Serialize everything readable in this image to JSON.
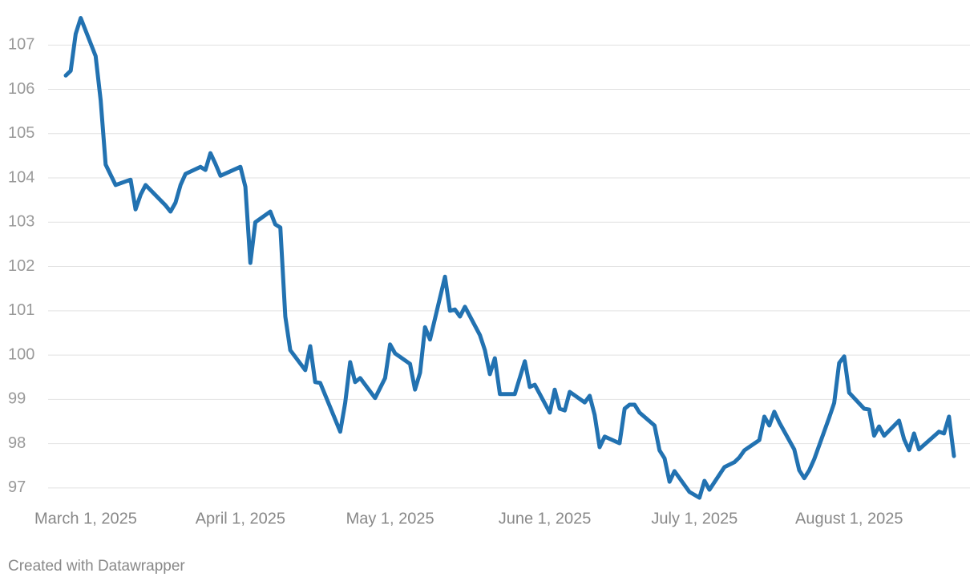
{
  "chart_data": {
    "type": "line",
    "x": [
      "2025-02-25",
      "2025-02-26",
      "2025-02-27",
      "2025-02-28",
      "2025-03-03",
      "2025-03-04",
      "2025-03-05",
      "2025-03-07",
      "2025-03-10",
      "2025-03-11",
      "2025-03-12",
      "2025-03-13",
      "2025-03-17",
      "2025-03-18",
      "2025-03-19",
      "2025-03-20",
      "2025-03-21",
      "2025-03-24",
      "2025-03-25",
      "2025-03-26",
      "2025-03-27",
      "2025-03-28",
      "2025-04-01",
      "2025-04-02",
      "2025-04-03",
      "2025-04-04",
      "2025-04-07",
      "2025-04-08",
      "2025-04-09",
      "2025-04-10",
      "2025-04-11",
      "2025-04-14",
      "2025-04-15",
      "2025-04-16",
      "2025-04-17",
      "2025-04-21",
      "2025-04-22",
      "2025-04-23",
      "2025-04-24",
      "2025-04-25",
      "2025-04-28",
      "2025-04-30",
      "2025-05-01",
      "2025-05-02",
      "2025-05-05",
      "2025-05-06",
      "2025-05-07",
      "2025-05-08",
      "2025-05-09",
      "2025-05-12",
      "2025-05-13",
      "2025-05-14",
      "2025-05-15",
      "2025-05-16",
      "2025-05-19",
      "2025-05-20",
      "2025-05-21",
      "2025-05-22",
      "2025-05-23",
      "2025-05-26",
      "2025-05-28",
      "2025-05-29",
      "2025-05-30",
      "2025-06-02",
      "2025-06-03",
      "2025-06-04",
      "2025-06-05",
      "2025-06-06",
      "2025-06-09",
      "2025-06-10",
      "2025-06-11",
      "2025-06-12",
      "2025-06-13",
      "2025-06-16",
      "2025-06-17",
      "2025-06-18",
      "2025-06-19",
      "2025-06-20",
      "2025-06-23",
      "2025-06-24",
      "2025-06-25",
      "2025-06-26",
      "2025-06-27",
      "2025-06-30",
      "2025-07-02",
      "2025-07-03",
      "2025-07-04",
      "2025-07-07",
      "2025-07-09",
      "2025-07-10",
      "2025-07-11",
      "2025-07-14",
      "2025-07-15",
      "2025-07-16",
      "2025-07-17",
      "2025-07-18",
      "2025-07-21",
      "2025-07-22",
      "2025-07-23",
      "2025-07-24",
      "2025-07-25",
      "2025-07-28",
      "2025-07-29",
      "2025-07-30",
      "2025-07-31",
      "2025-08-01",
      "2025-08-04",
      "2025-08-05",
      "2025-08-06",
      "2025-08-07",
      "2025-08-08",
      "2025-08-11",
      "2025-08-12",
      "2025-08-13",
      "2025-08-14",
      "2025-08-15",
      "2025-08-19",
      "2025-08-20",
      "2025-08-21",
      "2025-08-22"
    ],
    "series": [
      {
        "color": "#2272b1",
        "values": [
          106.31,
          106.42,
          107.25,
          107.61,
          106.75,
          105.75,
          104.3,
          103.84,
          103.96,
          103.29,
          103.62,
          103.84,
          103.38,
          103.24,
          103.44,
          103.84,
          104.09,
          104.25,
          104.18,
          104.56,
          104.32,
          104.05,
          104.25,
          103.8,
          102.08,
          103.0,
          103.24,
          102.95,
          102.88,
          100.87,
          100.11,
          99.66,
          100.2,
          99.39,
          99.37,
          98.27,
          98.92,
          99.84,
          99.39,
          99.48,
          99.03,
          99.48,
          100.24,
          100.04,
          99.8,
          99.22,
          99.6,
          100.63,
          100.35,
          101.77,
          101.0,
          101.03,
          100.87,
          101.09,
          100.45,
          100.11,
          99.57,
          99.93,
          99.12,
          99.12,
          99.86,
          99.28,
          99.33,
          98.7,
          99.22,
          98.79,
          98.75,
          99.17,
          98.93,
          99.08,
          98.65,
          97.92,
          98.16,
          98.01,
          98.79,
          98.88,
          98.88,
          98.7,
          98.41,
          97.85,
          97.67,
          97.14,
          97.38,
          96.91,
          96.78,
          97.16,
          96.96,
          97.47,
          97.58,
          97.69,
          97.85,
          98.08,
          98.61,
          98.41,
          98.72,
          98.48,
          97.87,
          97.4,
          97.22,
          97.4,
          97.65,
          98.59,
          98.92,
          99.82,
          99.97,
          99.15,
          98.79,
          98.77,
          98.18,
          98.39,
          98.18,
          98.52,
          98.1,
          97.85,
          98.23,
          97.87,
          98.27,
          98.23,
          98.61,
          97.72
        ]
      }
    ],
    "xlim": [
      "2025-02-25",
      "2025-08-22"
    ],
    "xticks": [
      {
        "value": "2025-03-01",
        "label": "March 1, 2025"
      },
      {
        "value": "2025-04-01",
        "label": "April 1, 2025"
      },
      {
        "value": "2025-05-01",
        "label": "May 1, 2025"
      },
      {
        "value": "2025-06-01",
        "label": "June 1, 2025"
      },
      {
        "value": "2025-07-01",
        "label": "July 1, 2025"
      },
      {
        "value": "2025-08-01",
        "label": "August 1, 2025"
      }
    ],
    "ylim": [
      96.6,
      107.8
    ],
    "yticks": [
      97,
      98,
      99,
      100,
      101,
      102,
      103,
      104,
      105,
      106,
      107
    ],
    "grid": true,
    "footer": "Created with Datawrapper"
  }
}
